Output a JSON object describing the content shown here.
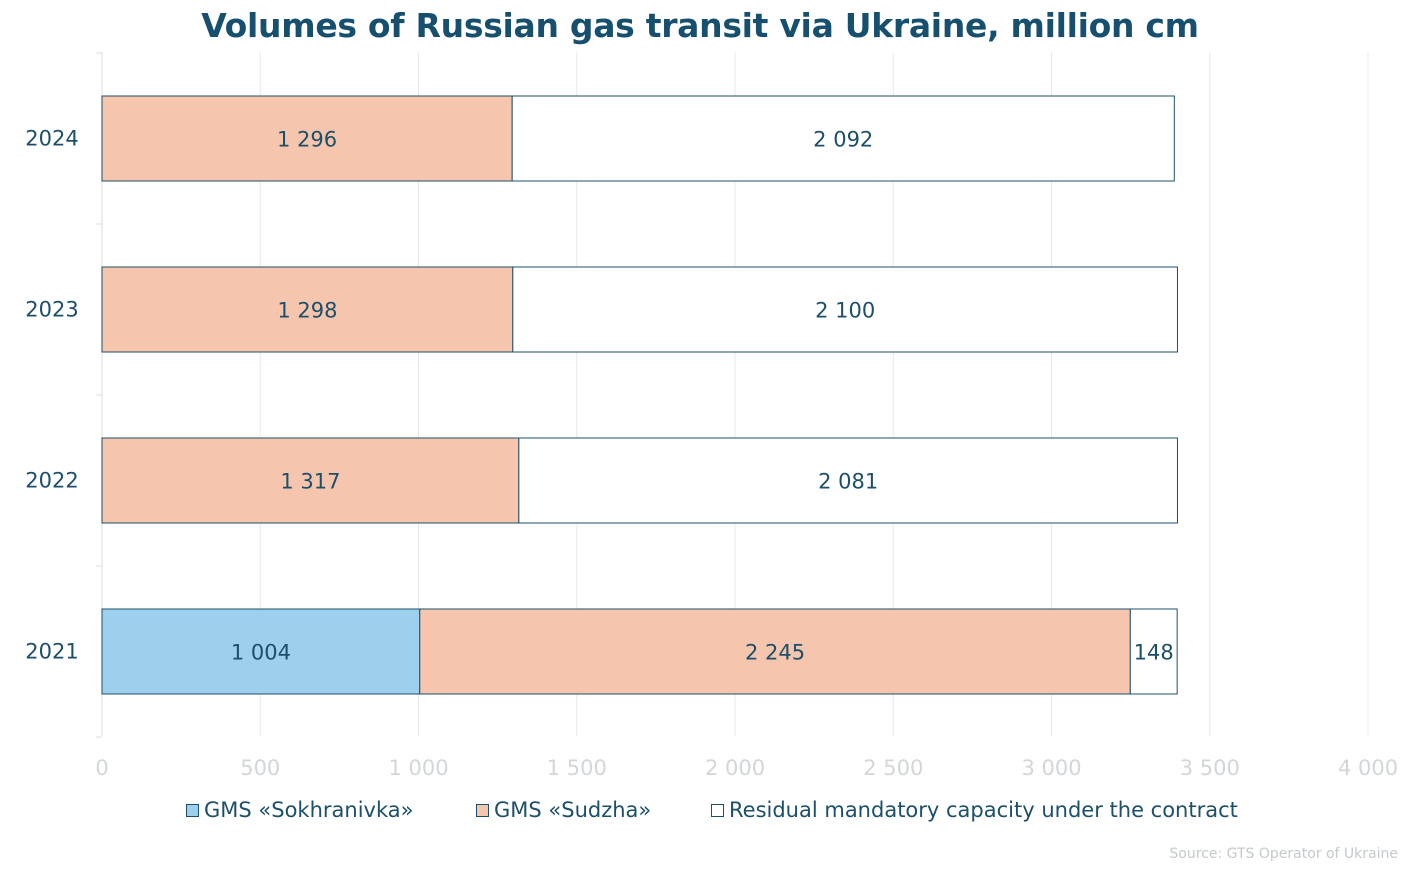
{
  "chart_data": {
    "type": "bar",
    "orientation": "horizontal",
    "stacked": true,
    "title": "Volumes of Russian gas transit via Ukraine, million cm",
    "categories": [
      "2024",
      "2023",
      "2022",
      "2021"
    ],
    "series": [
      {
        "name": "GMS «Sokhranivka»",
        "color": "#9dd0ed",
        "values": [
          0,
          0,
          0,
          1004
        ],
        "labels": [
          "",
          "",
          "",
          "1 004"
        ]
      },
      {
        "name": "GMS «Sudzha»",
        "color": "#f6c5ae",
        "values": [
          1296,
          1298,
          1317,
          2245
        ],
        "labels": [
          "1 296",
          "1 298",
          "1 317",
          "2 245"
        ]
      },
      {
        "name": "Residual mandatory capacity under the contract",
        "color": "#ffffff",
        "values": [
          2092,
          2100,
          2081,
          148
        ],
        "labels": [
          "2 092",
          "2 100",
          "2 081",
          "148"
        ]
      }
    ],
    "xlim": [
      0,
      4000
    ],
    "xticks": [
      0,
      500,
      1000,
      1500,
      2000,
      2500,
      3000,
      3500,
      4000
    ],
    "xtick_labels": [
      "0",
      "500",
      "1 000",
      "1 500",
      "2 000",
      "2 500",
      "3 000",
      "3 500",
      "4 000"
    ],
    "grid": true,
    "legend_position": "bottom",
    "source": "Source: GTS Operator of Ukraine"
  }
}
